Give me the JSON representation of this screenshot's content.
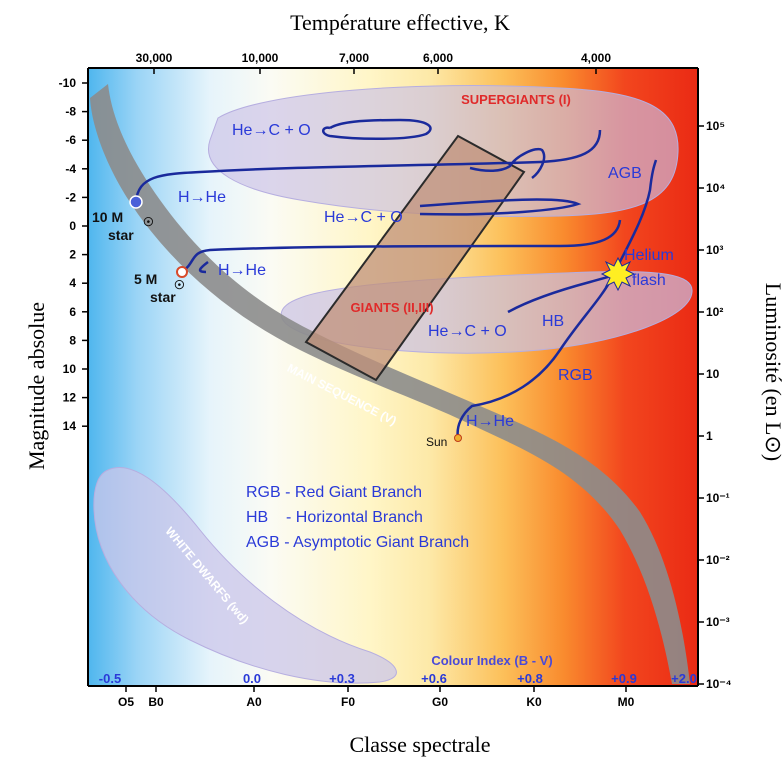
{
  "titles": {
    "top": "Température effective, K",
    "bottom": "Classe spectrale",
    "left": "Magnitude absolue",
    "right": "Luminosité (en L⊙)"
  },
  "temperature_ticks": [
    "30,000",
    "10,000",
    "7,000",
    "6,000",
    "4,000"
  ],
  "spectral_classes": [
    "O5",
    "B0",
    "A0",
    "F0",
    "G0",
    "K0",
    "M0"
  ],
  "magnitude_ticks": [
    "-10",
    "-8",
    "-6",
    "-4",
    "-2",
    "0",
    "2",
    "4",
    "6",
    "8",
    "10",
    "12",
    "14"
  ],
  "luminosity_ticks": [
    "10⁵",
    "10⁴",
    "10³",
    "10²",
    "10",
    "1",
    "10⁻¹",
    "10⁻²",
    "10⁻³",
    "10⁻⁴"
  ],
  "colour_index": {
    "label": "Colour Index (B - V)",
    "values": [
      "-0.5",
      "0.0",
      "+0.3",
      "+0.6",
      "+0.8",
      "+0.9",
      "+2.0"
    ]
  },
  "regions": {
    "supergiants": "SUPERGIANTS (I)",
    "giants": "GIANTS (II,III)",
    "main_sequence": "MAIN SEQUENCE (V)",
    "white_dwarfs": "WHITE DWARFS (wd)"
  },
  "track_labels": {
    "he_c_o_top": "He→C + O",
    "he_c_o_mid": "He→C + O",
    "he_c_o_low": "He→C + O",
    "h_he_10": "H→He",
    "h_he_5": "H→He",
    "h_he_sun": "H→He",
    "agb": "AGB",
    "hb": "HB",
    "rgb": "RGB",
    "helium": "Helium",
    "flash": "flash"
  },
  "stars": {
    "ten_mass": "10 M",
    "five_mass": "5 M",
    "star_word": "star",
    "sun": "Sun"
  },
  "legend": [
    "RGB - Red Giant Branch",
    "HB    - Horizontal Branch",
    "AGB - Asymptotic Giant Branch"
  ],
  "colors": {
    "track": "#1a2a9c",
    "region_label": "#e02a2a",
    "legend_text": "#2a3ad8",
    "instability_strip": "#c0907a"
  }
}
